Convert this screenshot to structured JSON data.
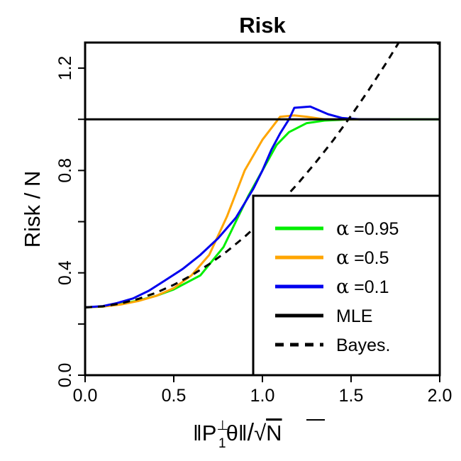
{
  "chart_data": {
    "type": "line",
    "title": "Risk",
    "xlabel": {
      "norm_open": "‖P",
      "perp": "⊥",
      "sub": "1",
      "theta_close": "θ‖",
      "slash": "/",
      "sqrt": "√",
      "N": "N"
    },
    "ylabel": "Risk / N",
    "xlim": [
      0,
      2
    ],
    "ylim": [
      0,
      1.3
    ],
    "xticks": [
      "0.0",
      "0.5",
      "1.0",
      "1.5",
      "2.0"
    ],
    "xtick_values": [
      0,
      0.5,
      1.0,
      1.5,
      2.0
    ],
    "yticks": [
      "0.0",
      "0.4",
      "0.8",
      "1.2"
    ],
    "ytick_values": [
      0,
      0.4,
      0.8,
      1.2
    ],
    "ytick_minor_values": [
      0.2,
      0.6,
      1.0
    ],
    "grid": false,
    "legend_position": "bottom-right",
    "series": [
      {
        "key": "a095",
        "legend_prefix": "α",
        "legend_value": " =0.95",
        "color": "#00ee00",
        "dash": "solid",
        "x": [
          0,
          0.1,
          0.2,
          0.3,
          0.4,
          0.5,
          0.65,
          0.78,
          0.85,
          0.92,
          1.0,
          1.08,
          1.15,
          1.25,
          1.35,
          1.5,
          1.75,
          2.0
        ],
        "y": [
          0.265,
          0.268,
          0.278,
          0.292,
          0.31,
          0.335,
          0.39,
          0.5,
          0.6,
          0.7,
          0.8,
          0.9,
          0.95,
          0.985,
          0.995,
          1.0,
          1.0,
          1.0
        ]
      },
      {
        "key": "a05",
        "legend_prefix": "α",
        "legend_value": " =0.5",
        "color": "#ffa500",
        "dash": "solid",
        "x": [
          0,
          0.1,
          0.2,
          0.3,
          0.4,
          0.5,
          0.6,
          0.7,
          0.8,
          0.9,
          1.0,
          1.1,
          1.18,
          1.25,
          1.35,
          1.5,
          1.72
        ],
        "y": [
          0.265,
          0.268,
          0.276,
          0.29,
          0.31,
          0.34,
          0.39,
          0.47,
          0.62,
          0.8,
          0.92,
          1.01,
          1.015,
          1.01,
          1.0,
          1.0,
          1.0
        ]
      },
      {
        "key": "a01",
        "legend_prefix": "α",
        "legend_value": " =0.1",
        "color": "#0000ee",
        "dash": "solid",
        "x": [
          0,
          0.1,
          0.18,
          0.27,
          0.36,
          0.45,
          0.55,
          0.65,
          0.75,
          0.85,
          0.95,
          1.0,
          1.05,
          1.1,
          1.15,
          1.18,
          1.27,
          1.37,
          1.45,
          1.55,
          1.72
        ],
        "y": [
          0.265,
          0.27,
          0.282,
          0.3,
          0.33,
          0.37,
          0.415,
          0.47,
          0.535,
          0.615,
          0.73,
          0.8,
          0.88,
          0.945,
          1.0,
          1.045,
          1.05,
          1.02,
          1.005,
          1.0,
          1.0
        ]
      },
      {
        "key": "mle",
        "legend_prefix": "",
        "legend_value": "MLE",
        "color": "#000000",
        "dash": "solid",
        "x": [
          0,
          2.0
        ],
        "y": [
          1.0,
          1.0
        ]
      },
      {
        "key": "bayes",
        "legend_prefix": "",
        "legend_value": "Bayes.",
        "color": "#000000",
        "dash": "dashed",
        "x": [
          0,
          0.1,
          0.2,
          0.3,
          0.4,
          0.5,
          0.6,
          0.7,
          0.8,
          0.9,
          1.0,
          1.1,
          1.2,
          1.3,
          1.4,
          1.5,
          1.6,
          1.7,
          1.8,
          1.9,
          2.0
        ],
        "y": [
          0.265,
          0.269,
          0.28,
          0.298,
          0.322,
          0.353,
          0.39,
          0.434,
          0.484,
          0.541,
          0.604,
          0.673,
          0.749,
          0.831,
          0.919,
          1.014,
          1.115,
          1.222,
          1.335,
          1.455,
          1.28
        ]
      }
    ]
  }
}
